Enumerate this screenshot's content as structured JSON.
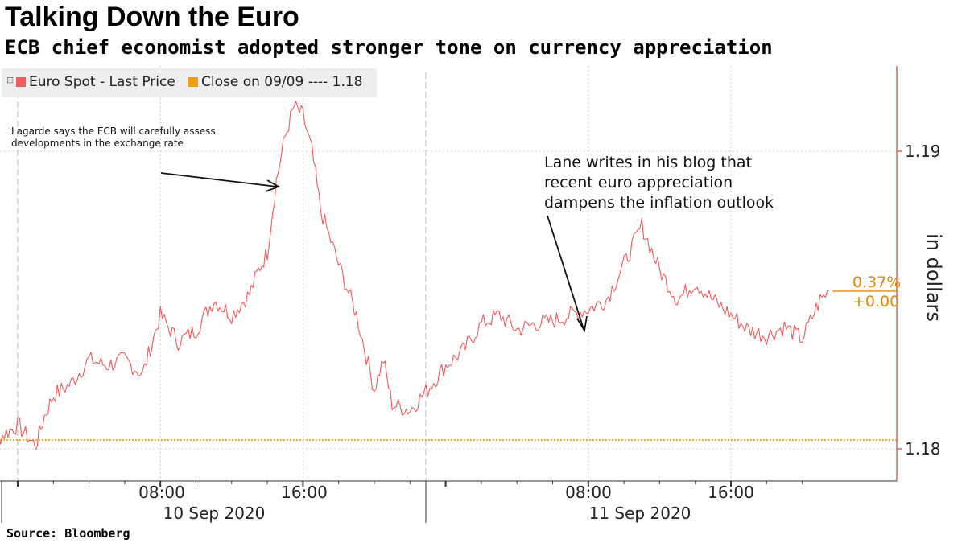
{
  "header": {
    "title": "Talking Down the Euro",
    "subtitle": "ECB chief economist adopted stronger tone on currency appreciation"
  },
  "footer": {
    "source": "Source: Bloomberg"
  },
  "legend": {
    "items": [
      {
        "label": "Euro Spot - Last Price",
        "color": "#f15b5b"
      },
      {
        "label": "Close on 09/09 ---- 1.18",
        "color": "#f39c12"
      }
    ]
  },
  "annotations": {
    "lagarde": "Lagarde says the ECB will carefully assess\ndevelopments in the exchange rate",
    "lane": "Lane writes in his blog that\nrecent euro appreciation\ndampens the inflation outlook"
  },
  "last_value": {
    "pct": "0.37%",
    "change": "+0.00"
  },
  "chart_data": {
    "type": "line",
    "title": "Talking Down the Euro",
    "subtitle": "ECB chief economist adopted stronger tone on currency appreciation",
    "xlabel": "",
    "ylabel": "in dollars",
    "y_axis_position": "right",
    "ylim": [
      1.1788,
      1.1935
    ],
    "yticks": [
      1.18,
      1.19
    ],
    "ytick_labels": [
      "1.18",
      "1.19"
    ],
    "xtick_labels": [
      "08:00",
      "16:00",
      "08:00",
      "16:00"
    ],
    "xtick_hours": [
      8,
      16,
      32,
      40
    ],
    "date_labels": [
      {
        "label": "10 Sep 2020",
        "hour": 10.5
      },
      {
        "label": "11 Sep 2020",
        "hour": 34.5
      }
    ],
    "xlim_hours": [
      -2.4,
      46.0
    ],
    "grid": true,
    "legend_position": "top-left",
    "reference_line": {
      "name": "Close on 09/09",
      "value": 1.1803,
      "color": "#f39c12",
      "style": "dotted"
    },
    "series": [
      {
        "name": "Euro Spot - Last Price",
        "color": "#f15b5b",
        "x_hours": [
          -2.4,
          -1.5,
          0,
          1,
          1.5,
          2,
          3,
          4,
          5,
          6,
          7,
          8,
          9,
          10,
          11,
          12,
          13,
          13.5,
          14,
          14.5,
          15,
          15.5,
          16,
          16.5,
          17,
          18,
          19,
          20,
          20.5,
          21,
          22,
          23,
          24,
          25,
          26,
          27,
          28,
          29,
          30,
          31,
          32,
          33,
          34,
          35,
          36,
          37,
          38,
          39,
          40,
          41,
          42,
          43,
          44,
          45,
          45.5
        ],
        "values": [
          1.1803,
          1.1802,
          1.1808,
          1.1801,
          1.1811,
          1.1818,
          1.1822,
          1.183,
          1.1828,
          1.183,
          1.1825,
          1.1845,
          1.1836,
          1.184,
          1.185,
          1.1845,
          1.1852,
          1.186,
          1.1866,
          1.189,
          1.1905,
          1.1915,
          1.1912,
          1.19,
          1.188,
          1.1862,
          1.1845,
          1.182,
          1.183,
          1.1815,
          1.1813,
          1.182,
          1.1828,
          1.1833,
          1.1842,
          1.1845,
          1.184,
          1.1842,
          1.1843,
          1.1845,
          1.1847,
          1.185,
          1.1862,
          1.1875,
          1.186,
          1.185,
          1.1856,
          1.185,
          1.1845,
          1.184,
          1.1838,
          1.1841,
          1.1837,
          1.185,
          1.1853
        ]
      }
    ]
  }
}
